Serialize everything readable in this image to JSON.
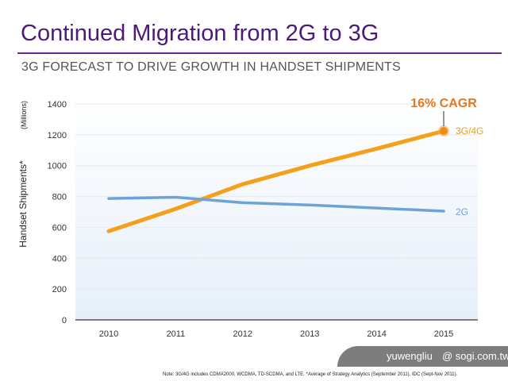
{
  "title": "Continued Migration from 2G to 3G",
  "subtitle": "3G FORECAST TO DRIVE GROWTH IN HANDSET SHIPMENTS",
  "footnote": "Note: 3G/4G includes CDMA2000, WCDMA, TD-SCDMA, and LTE.  *Average of Strategy Analytics (September 2011), IDC (Sept-Nov 2011).",
  "watermark": {
    "user": "yuwengliu",
    "site": "@ sogi.com.tw"
  },
  "chart_data": {
    "type": "line",
    "ylabel": "Handset Shipments*",
    "yunit": "(Millions)",
    "ylim": [
      0,
      1400
    ],
    "yticks": [
      0,
      200,
      400,
      600,
      800,
      1000,
      1200,
      1400
    ],
    "categories": [
      "2010",
      "2011",
      "2012",
      "2013",
      "2014",
      "2015"
    ],
    "grid": true,
    "series": [
      {
        "name": "3G/4G",
        "values": [
          575,
          720,
          880,
          1000,
          1110,
          1225
        ],
        "color": "#f5a01a"
      },
      {
        "name": "2G",
        "values": [
          787,
          795,
          760,
          745,
          725,
          705
        ],
        "color": "#6fa3d8"
      }
    ],
    "annotation": "16% CAGR",
    "annotation_color": "#e8771e"
  }
}
